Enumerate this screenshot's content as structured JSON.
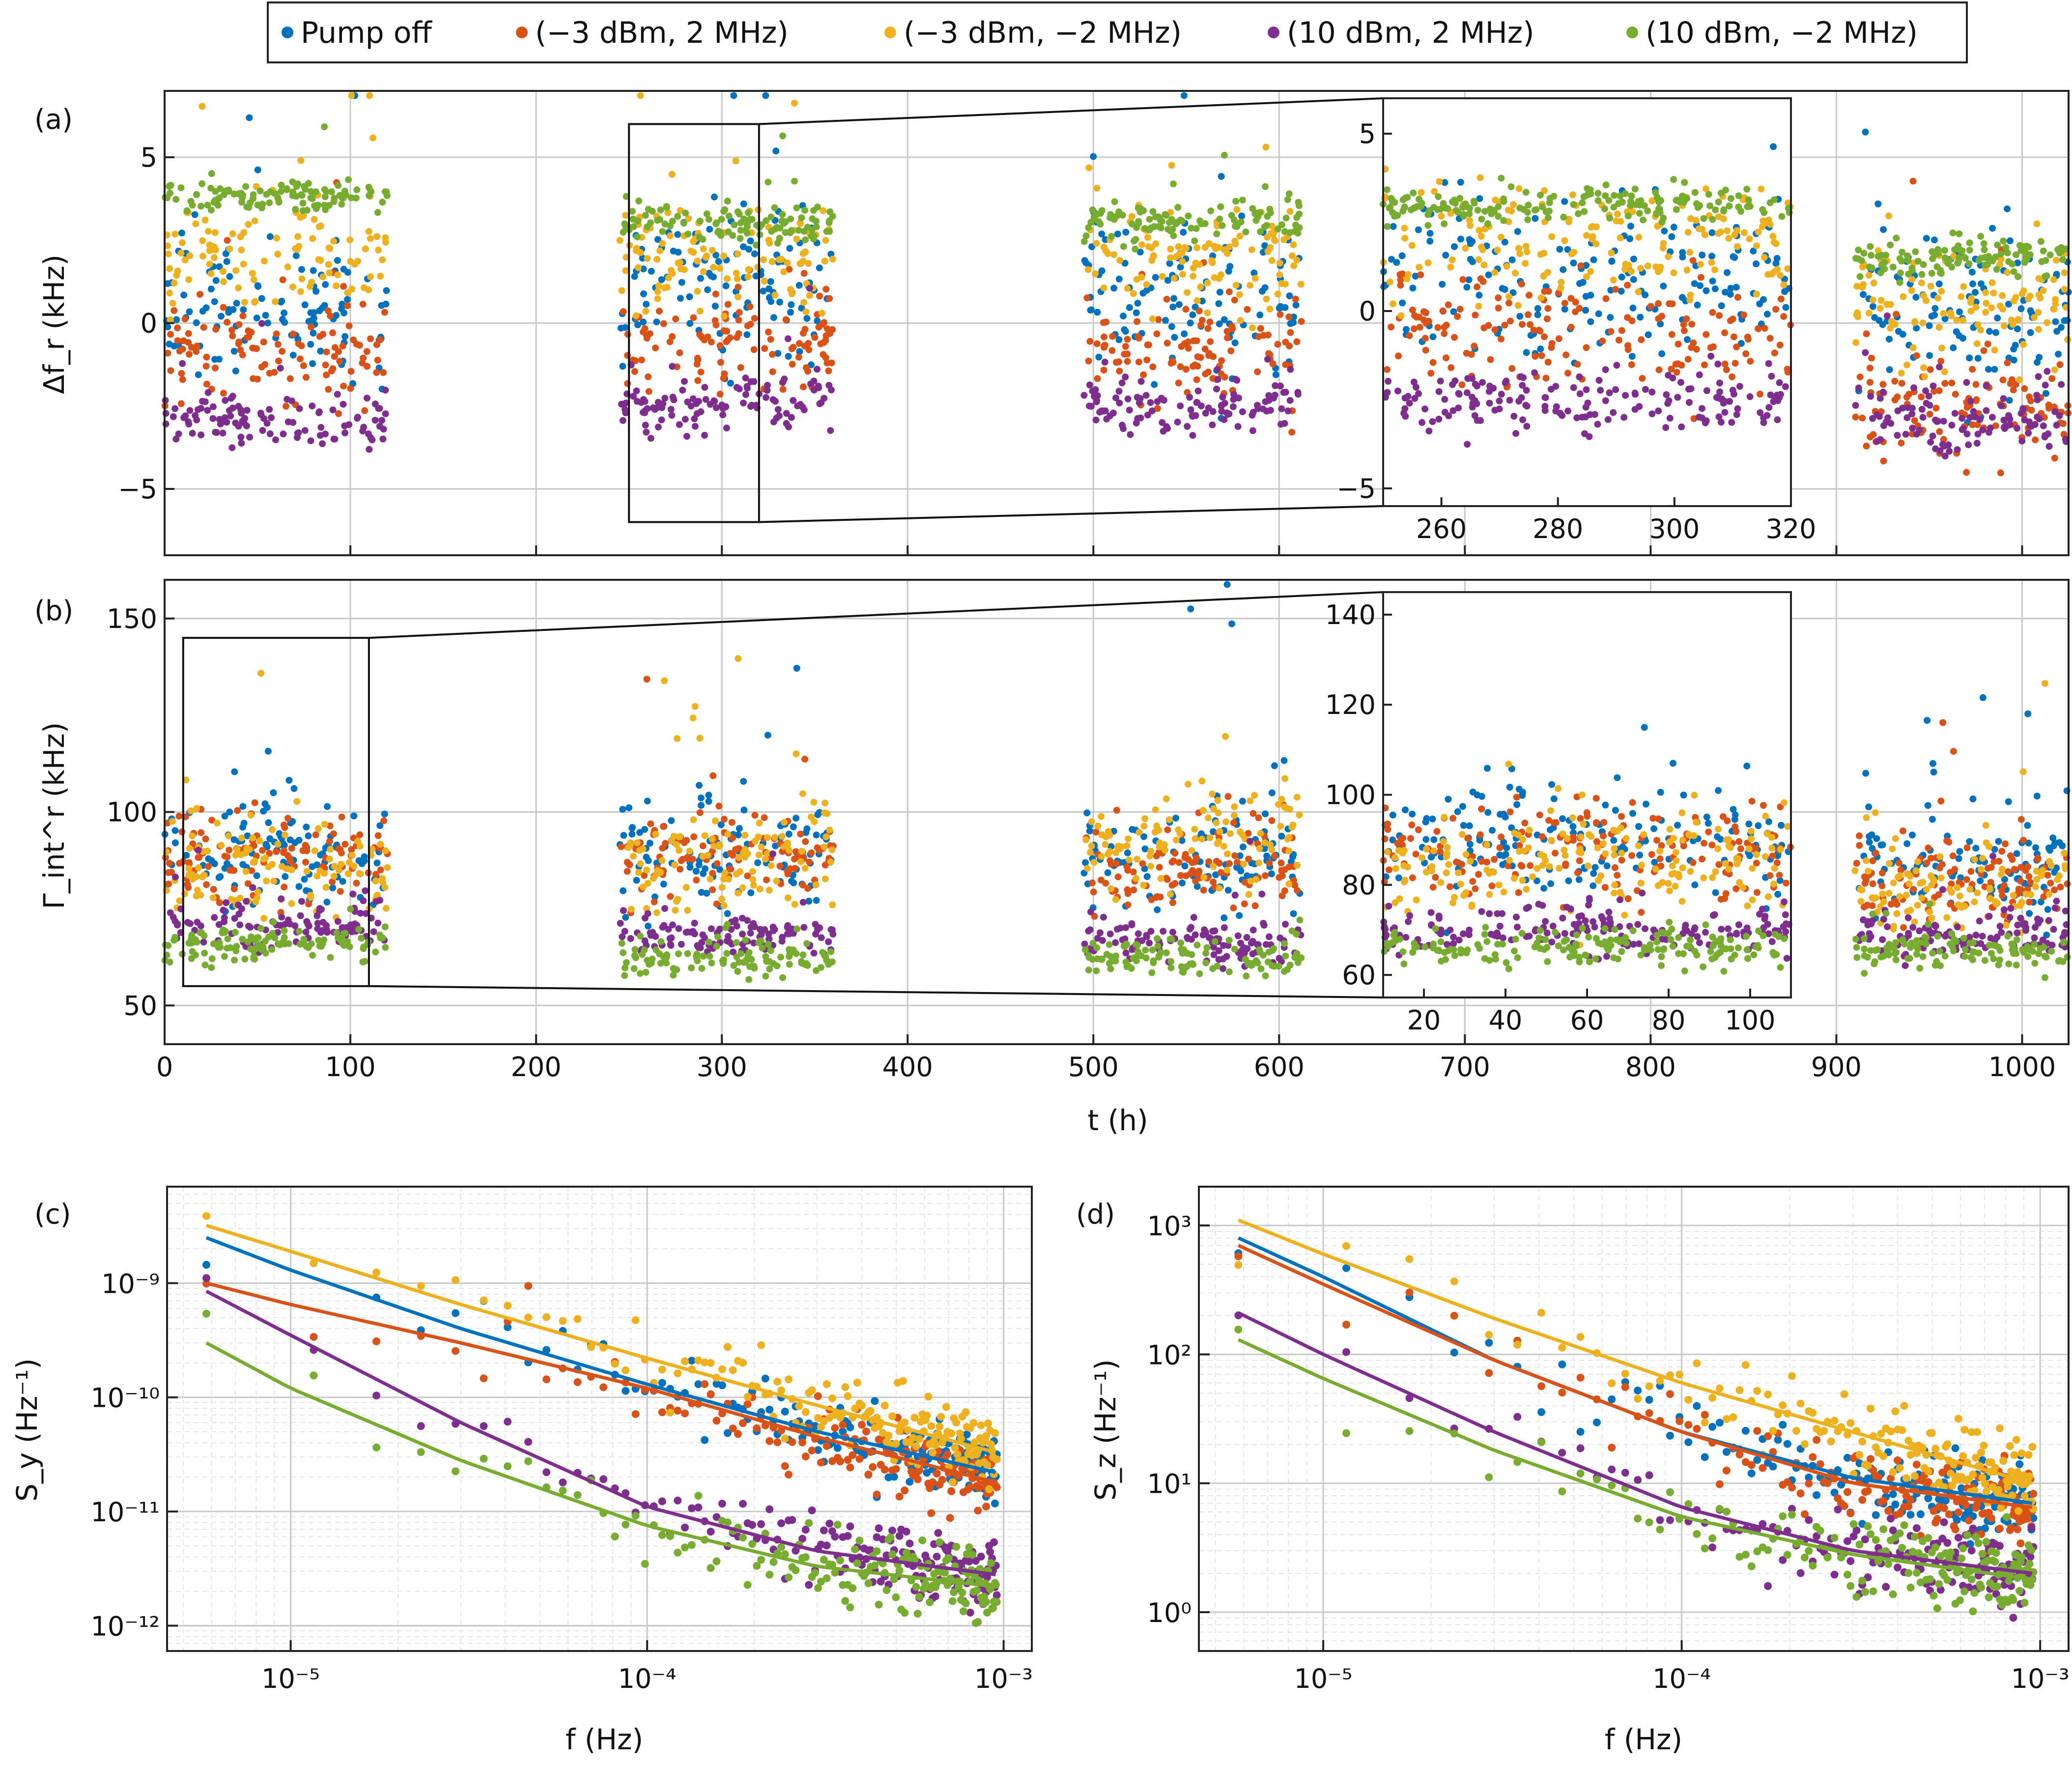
{
  "legend": {
    "entries": [
      {
        "label": "Pump off",
        "color": "#0072BD"
      },
      {
        "label": "(−3 dBm, 2 MHz)",
        "color": "#D95319"
      },
      {
        "label": "(−3 dBm, −2 MHz)",
        "color": "#EDB120"
      },
      {
        "label": "(10 dBm, 2 MHz)",
        "color": "#7E2F8E"
      },
      {
        "label": "(10 dBm, −2 MHz)",
        "color": "#77AC30"
      }
    ]
  },
  "chart_data": [
    {
      "id": "a",
      "type": "scatter",
      "panel_tag": "(a)",
      "xlabel": "t (h)",
      "ylabel": "Δf_r (kHz)",
      "xlim": [
        0,
        1025
      ],
      "ylim": [
        -7,
        7
      ],
      "xticks": [
        0,
        100,
        200,
        300,
        400,
        500,
        600,
        700,
        800,
        900,
        1000
      ],
      "yticks": [
        -5,
        0,
        5
      ],
      "segments": [
        [
          0,
          120
        ],
        [
          245,
          360
        ],
        [
          495,
          612
        ],
        [
          910,
          1025
        ]
      ],
      "series": [
        {
          "name": "Pump off",
          "mean": [
            0.5,
            1.0,
            0.8,
            0.3
          ],
          "spread": 2.0
        },
        {
          "name": "(−3 dBm, 2 MHz)",
          "mean": [
            -1.0,
            -0.5,
            -1.0,
            -2.5
          ],
          "spread": 1.5
        },
        {
          "name": "(−3 dBm, −2 MHz)",
          "mean": [
            2.0,
            2.0,
            2.0,
            0.5
          ],
          "spread": 1.5
        },
        {
          "name": "(10 dBm, 2 MHz)",
          "mean": [
            -3.0,
            -2.5,
            -2.5,
            -3.0
          ],
          "spread": 0.8
        },
        {
          "name": "(10 dBm, −2 MHz)",
          "mean": [
            3.8,
            3.0,
            3.0,
            2.0
          ],
          "spread": 0.5
        }
      ],
      "zoom_box": {
        "x": [
          250,
          320
        ],
        "y": [
          -6,
          6
        ]
      },
      "inset": {
        "xlim": [
          250,
          320
        ],
        "ylim": [
          -5.5,
          6
        ],
        "xticks": [
          260,
          280,
          300,
          320
        ],
        "yticks": [
          -5,
          0,
          5
        ]
      }
    },
    {
      "id": "b",
      "type": "scatter",
      "panel_tag": "(b)",
      "xlabel": "t (h)",
      "ylabel": "Γ_int^r (kHz)",
      "xlim": [
        0,
        1025
      ],
      "ylim": [
        40,
        160
      ],
      "xticks": [
        0,
        100,
        200,
        300,
        400,
        500,
        600,
        700,
        800,
        900,
        1000
      ],
      "yticks": [
        50,
        100,
        150
      ],
      "segments": [
        [
          0,
          120
        ],
        [
          245,
          360
        ],
        [
          495,
          612
        ],
        [
          910,
          1025
        ]
      ],
      "series": [
        {
          "name": "Pump off",
          "mean": [
            90,
            88,
            88,
            85
          ],
          "spread": 12
        },
        {
          "name": "(−3 dBm, 2 MHz)",
          "mean": [
            88,
            88,
            85,
            82
          ],
          "spread": 10
        },
        {
          "name": "(−3 dBm, −2 MHz)",
          "mean": [
            85,
            88,
            92,
            80
          ],
          "spread": 12
        },
        {
          "name": "(10 dBm, 2 MHz)",
          "mean": [
            70,
            68,
            66,
            68
          ],
          "spread": 5
        },
        {
          "name": "(10 dBm, −2 MHz)",
          "mean": [
            66,
            62,
            62,
            64
          ],
          "spread": 4
        }
      ],
      "zoom_box": {
        "x": [
          10,
          110
        ],
        "y": [
          55,
          145
        ]
      },
      "inset": {
        "xlim": [
          10,
          110
        ],
        "ylim": [
          55,
          145
        ],
        "xticks": [
          20,
          40,
          60,
          80,
          100
        ],
        "yticks": [
          60,
          80,
          100,
          120,
          140
        ]
      }
    },
    {
      "id": "c",
      "type": "scatter",
      "panel_tag": "(c)",
      "xlabel": "f (Hz)",
      "ylabel": "S_y (Hz⁻¹)",
      "xscale": "log",
      "yscale": "log",
      "xlim": [
        4.5e-06,
        0.0012
      ],
      "ylim": [
        6e-13,
        7e-09
      ],
      "xticks": [
        "10⁻⁵",
        "10⁻⁴",
        "10⁻³"
      ],
      "xtick_values": [
        1e-05,
        0.0001,
        0.001
      ],
      "yticks": [
        "10⁻¹²",
        "10⁻¹¹",
        "10⁻¹⁰",
        "10⁻⁹"
      ],
      "ytick_values": [
        1e-12,
        1e-11,
        1e-10,
        1e-09
      ],
      "fits": [
        {
          "name": "Pump off",
          "f": [
            5.8e-06,
            1e-05,
            3e-05,
            0.0001,
            0.0003,
            0.00095
          ],
          "S": [
            2.5e-09,
            1.3e-09,
            4e-10,
            1.3e-10,
            5e-11,
            2.2e-11
          ]
        },
        {
          "name": "(−3 dBm, 2 MHz)",
          "f": [
            5.8e-06,
            1e-05,
            3e-05,
            0.0001,
            0.0003,
            0.00095
          ],
          "S": [
            1e-09,
            6.5e-10,
            3e-10,
            1.2e-10,
            4.5e-11,
            1.8e-11
          ]
        },
        {
          "name": "(−3 dBm, −2 MHz)",
          "f": [
            5.8e-06,
            1e-05,
            3e-05,
            0.0001,
            0.0003,
            0.00095
          ],
          "S": [
            3.2e-09,
            1.9e-09,
            6.5e-10,
            2.2e-10,
            8.5e-11,
            3.3e-11
          ]
        },
        {
          "name": "(10 dBm, 2 MHz)",
          "f": [
            5.8e-06,
            1e-05,
            3e-05,
            0.0001,
            0.0003,
            0.00095
          ],
          "S": [
            8.5e-10,
            3.5e-10,
            6e-11,
            1.1e-11,
            4.5e-12,
            2.8e-12
          ]
        },
        {
          "name": "(10 dBm, −2 MHz)",
          "f": [
            5.8e-06,
            1e-05,
            3e-05,
            0.0001,
            0.0003,
            0.00095
          ],
          "S": [
            3e-10,
            1.2e-10,
            2.8e-11,
            7.5e-12,
            3.3e-12,
            2.2e-12
          ]
        }
      ]
    },
    {
      "id": "d",
      "type": "scatter",
      "panel_tag": "(d)",
      "xlabel": "f (Hz)",
      "ylabel": "S_z (Hz⁻¹)",
      "xscale": "log",
      "yscale": "log",
      "xlim": [
        4.5e-06,
        0.0012
      ],
      "ylim": [
        0.5,
        2000
      ],
      "xticks": [
        "10⁻⁵",
        "10⁻⁴",
        "10⁻³"
      ],
      "xtick_values": [
        1e-05,
        0.0001,
        0.001
      ],
      "yticks": [
        "10⁰",
        "10¹",
        "10²",
        "10³"
      ],
      "ytick_values": [
        1,
        10,
        100,
        1000
      ],
      "fits": [
        {
          "name": "Pump off",
          "f": [
            5.8e-06,
            1e-05,
            3e-05,
            0.0001,
            0.0003,
            0.00095
          ],
          "S": [
            800,
            400,
            90,
            25,
            11,
            7
          ]
        },
        {
          "name": "(−3 dBm, 2 MHz)",
          "f": [
            5.8e-06,
            1e-05,
            3e-05,
            0.0001,
            0.0003,
            0.00095
          ],
          "S": [
            700,
            350,
            90,
            25,
            10,
            6.5
          ]
        },
        {
          "name": "(−3 dBm, −2 MHz)",
          "f": [
            5.8e-06,
            1e-05,
            3e-05,
            0.0001,
            0.0003,
            0.00095
          ],
          "S": [
            1100,
            600,
            190,
            60,
            25,
            10
          ]
        },
        {
          "name": "(10 dBm, 2 MHz)",
          "f": [
            5.8e-06,
            1e-05,
            3e-05,
            0.0001,
            0.0003,
            0.00095
          ],
          "S": [
            210,
            100,
            25,
            6.5,
            3,
            2
          ]
        },
        {
          "name": "(10 dBm, −2 MHz)",
          "f": [
            5.8e-06,
            1e-05,
            3e-05,
            0.0001,
            0.0003,
            0.00095
          ],
          "S": [
            130,
            65,
            18,
            5.5,
            2.8,
            1.8
          ]
        }
      ]
    }
  ]
}
